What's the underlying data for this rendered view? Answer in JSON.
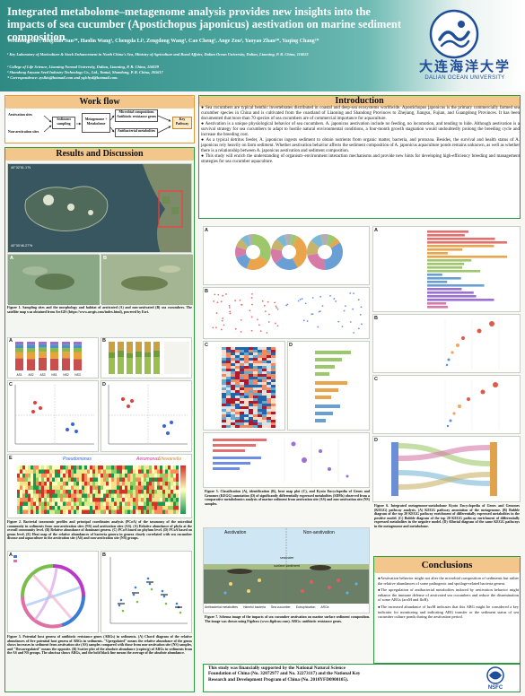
{
  "header": {
    "title": "Integrated metabolome–metagenome analysis provides new insights into the impacts of sea cucumber (Apostichopus japonicus) aestivation on marine sediment composition",
    "authors": "Wenhong Ma¹, Bingxian Sun²*, Haolin Wang¹, Chengda Li³, Zengdong Wang³, Cao Cheng³, Ange Zou³, Yaoyao Zhan²*, Yaqing Chang²*",
    "affiliations": [
      "¹ Key Laboratory of Mariculture & Stock Enhancement in North China's Sea, Ministry of Agriculture and Rural Affairs, Dalian Ocean University, Dalian, Liaoning, P. R. China, 116023",
      "² College of Life Science, Liaoning Normal University, Dalian, Liaoning, P. R. China, 116029",
      "³ Shandong Anyuan Seed Industry Technology Co., Ltd., Yantai, Shandong, P. R. China, 265617",
      "* Correspondence: zyslkis@hotmail.com and yqlchyd@hotmail.com."
    ],
    "university_cn": "大连海洋大学",
    "university_en": "DALIAN OCEAN UNIVERSITY"
  },
  "workflow": {
    "heading": "Work flow",
    "left_labels": [
      "Aestivation sites",
      "Non-aestivation sites"
    ],
    "sediment": "Sediment sampling",
    "metagenome": "Metagenome + Metabolome",
    "right_top": "Microbial compositions Antibiotic resistance genes",
    "right_bottom": "Antibacterial metabolites",
    "key": "Key Pathway"
  },
  "results": {
    "heading": "Results and Discussion",
    "map_coord_top": "40°32'51.1\"N",
    "map_coord_bottom": "40°30'46.27\"N",
    "fig1_caption": "Figure 1. Sampling sites and the morphology and habitat of aestivated (A) and non-aestivated (B) sea cucumbers. The satellite map was obtained from ArcGIS (https://www.arcgis.com/index.html), powered by Esri.",
    "fig2_caption": "Figure 2. Bacterial taxonomic profiles and principal coordinates analysis (PCoA) of the taxonomy of the microbial community in sediments from non-aestivation sites (NS) and aestivation sites (AS). (A) Relative abundance of phyla at the overall community level. (B) Relative abundance of dominant genera. (C) PCoA based on phylum level. (D) PCoA based on genus level. (E) Heat map of the relative abundances of bacteria genera in genera closely correlated with sea cucumber disease and aquaculture in the aestivation site (AS) and non-aestivation site (NS) groups.",
    "fig3_caption": "Figure 3. Potential host genera of antibiotic resistance genes (ARGs) in sediments. (A) Chord diagram of the relative abundances of five potential host genera of ARGs in sediments. \"Upregulated\" means the relative abundance of the genus shows increases in sediment from aestivation site (AS) samples compared with those from non-aestivation site (NS) samples, and \"Downregulated\" means the opposite. (B) Scatter plot of the absolute abundance (copies/g) of ARGs in sediments from the AS and NS groups. The abscissa shows ARGs, and the bold black line means the average of the absolute abundance.",
    "fig5_caption": "Figure 5. Classification (A), identification (B), heat map plot (C), and Kyoto Encyclopedia of Genes and Genomes (KEGG) annotation (D) of significantly differentially expressed metabolites (SDMs) observed from a comparative metabolomics analysis of marine sediment from aestivation site (AS) and non-aestivation site (NS) samples.",
    "fig6_caption": "Figure 6. Integrated metagenome-metabolome Kyoto Encyclopedia of Genes and Genomes (KEGG) pathway analysis. (A) KEGG pathway annotation of the metagenome. (B) Bubble diagram of the top 20 KEGG pathway enrichment of differentially expressed metabolites in the positive model. (C) Bubble diagram of the top 20 KEGG pathway enrichment of differentially expressed metabolites in the negative model. (D) Alluvial diagram of the same KEGG pathways in the metagenome and metabolome.",
    "fig7_caption": "Figure 7. Schema image of the impacts of sea cucumber aestivation on marine surface sediment composition. The image was drawn using Figdraw (www.figdraw.com). ARGs: antibiotic resistance genes.",
    "fig7_labels": [
      "Aestivation",
      "Non-aestivation",
      "seawater",
      "surface sediment"
    ],
    "fig7_legend": [
      "Antibacterial metabolites",
      "Harmful bacteria",
      "Sea cucumber",
      "Eutrophication",
      "ARGs"
    ],
    "heatmap_genera": [
      "Pseudomonas",
      "Aeromonas",
      "Shewanella"
    ],
    "panel_letters": [
      "A",
      "B",
      "C",
      "D",
      "E"
    ]
  },
  "introduction": {
    "heading": "Introduction",
    "paragraphs": [
      "● Sea cucumbers are typical benthic invertebrates distributed in coastal and deep-sea ecosystems worldwide. Apostichopus japonicus is the primary commercially farmed sea cucumber species in China and is cultivated from the coastland of Liaoning and Shandong Provinces to Zhejiang, Jiangsu, Fujian, and Guangdong Provinces. It has been documented that more than 70 species of sea cucumbers are of commercial importance for aquaculture.",
      "● Aestivation is a unique physiological behavior of sea cucumbers. A. japonicus aestivation include no feeding, no locomotion, and tending to hide. Although aestivation is a survival strategy for sea cucumbers to adapt to hostile natural environmental conditions, a four-month growth stagnation would undoubtedly prolong the breeding cycle and increase the breeding cost.",
      "● As a typical detritus feeder, A. japonicus ingests sediment to obtain nutrients from organic matter, bacteria, and protozoa. Besides, the survival and health status of A. japonicus rely heavily on farm sediment. Whether aestivation behavior affects the sediment composition of A. japonicus aquaculture ponds remains unknown, as well as whether there is a relationship between A. japonicus aestivation and sediment composition.",
      "● This study will enrich the understanding of organism–environment interaction mechanisms and provide new hints for developing high-efficiency breeding and management strategies for sea cucumber aquaculture."
    ]
  },
  "conclusions": {
    "heading": "Conclusions",
    "paragraphs": [
      "●Aestivation behavior might not alter the microbial composition of sediments but rather the relative abundances of some pathogenic and spoilage-related bacteria genera.",
      "●The upregulation of antibacterial metabolites induced by aestivation behavior might enhance the immune defense of aestivated sea cucumbers and reduce the dissemination of some ARGs (aroM and floR).",
      "●The increased abundance of luxM indicates that this ARG might be considered a key indicator for monitoring and indicating ARG transfer or the sediment status of sea cucumber culture ponds during the aestivation period."
    ]
  },
  "funding": {
    "text": "This study was financially supported by the National Natural Science Foundation of China (No. 32072977 and No. 32273117) and the National Key Research and Development Program of China (No. 2018YFD0900105).",
    "logo_text": "NSFC"
  },
  "colors": {
    "header_teal": "#3a938c",
    "section_orange": "#f3c78b",
    "section_green_border": "#2e9a3e",
    "brand_blue": "#1f4e9a"
  },
  "chart_data": [
    {
      "type": "bar",
      "title": "",
      "categories": [
        "AS1",
        "AS2",
        "AS3",
        "NS1",
        "NS2",
        "NS3"
      ],
      "series": [
        {
          "values": [
            0.42,
            0.4,
            0.44,
            0.41,
            0.43,
            0.39
          ]
        },
        {
          "values": [
            0.22,
            0.24,
            0.21,
            0.23,
            0.22,
            0.25
          ]
        },
        {
          "values": [
            0.14,
            0.13,
            0.15,
            0.14,
            0.13,
            0.14
          ]
        },
        {
          "values": [
            0.12,
            0.13,
            0.11,
            0.12,
            0.12,
            0.12
          ]
        },
        {
          "values": [
            0.1,
            0.1,
            0.09,
            0.1,
            0.1,
            0.1
          ]
        }
      ],
      "ylim": [
        0,
        1
      ]
    },
    {
      "type": "pie",
      "title": "",
      "values": [
        34,
        22,
        14,
        10,
        8,
        7,
        5
      ]
    }
  ]
}
